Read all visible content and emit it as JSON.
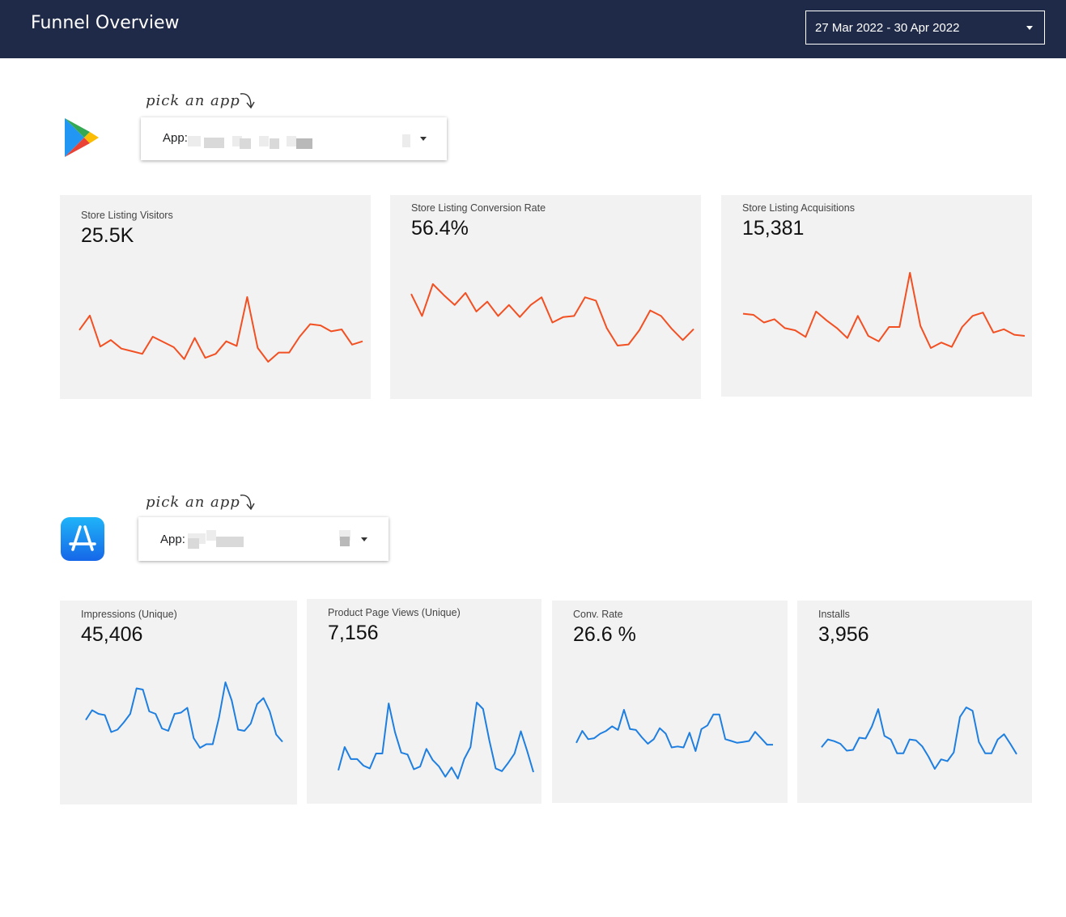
{
  "header": {
    "title": "Funnel Overview",
    "date_range": "27 Mar 2022 - 30 Apr 2022"
  },
  "colors": {
    "header_bg": "#1f2a48",
    "play_line": "#f25022",
    "appstore_line": "#1e7fe0",
    "card_bg": "#f2f2f2"
  },
  "google_play": {
    "icon": "google-play-icon",
    "hint": "pick an app",
    "selector": {
      "label": "App:"
    },
    "cards": [
      {
        "title": "Store Listing Visitors",
        "value": "25.5K",
        "series": [
          30,
          52,
          5,
          15,
          2,
          -2,
          -6,
          20,
          12,
          4,
          -14,
          18,
          -12,
          -6,
          13,
          6,
          80,
          3,
          -18,
          -4,
          -4,
          20,
          39,
          37,
          28,
          31,
          8,
          13
        ]
      },
      {
        "title": "Store Listing Conversion Rate",
        "value": "56.4%",
        "series": [
          63,
          43,
          72,
          62,
          53,
          64,
          47,
          56,
          43,
          53,
          42,
          53,
          60,
          37,
          42,
          43,
          60,
          57,
          32,
          16,
          17,
          30,
          48,
          43,
          31,
          21,
          31
        ]
      },
      {
        "title": "Store Listing Acquisitions",
        "value": "15,381",
        "series": [
          36,
          35,
          28,
          31,
          23,
          21,
          15,
          38,
          30,
          23,
          14,
          34,
          16,
          11,
          24,
          24,
          73,
          25,
          5,
          10,
          6,
          24,
          34,
          37,
          19,
          22,
          17,
          16
        ]
      }
    ]
  },
  "app_store": {
    "icon": "app-store-icon",
    "hint": "pick an app",
    "selector": {
      "label": "App:"
    },
    "cards": [
      {
        "title": "Impressions (Unique)",
        "value": "45,406",
        "series": [
          29,
          37,
          34,
          33,
          19,
          21,
          27,
          34,
          55,
          54,
          36,
          34,
          22,
          20,
          34,
          35,
          39,
          14,
          6,
          9,
          9,
          31,
          60,
          45,
          21,
          20,
          26,
          42,
          47,
          36,
          17,
          11
        ]
      },
      {
        "title": "Product Page Views (Unique)",
        "value": "7,156",
        "series": [
          5,
          30,
          17,
          17,
          10,
          7,
          23,
          23,
          77,
          46,
          24,
          22,
          6,
          9,
          28,
          16,
          9,
          -2,
          8,
          -4,
          17,
          30,
          78,
          71,
          37,
          7,
          4,
          13,
          23,
          47,
          26,
          3
        ]
      },
      {
        "title": "Conv. Rate",
        "value": "26.6 %",
        "series": [
          34,
          47,
          38,
          39,
          44,
          47,
          52,
          48,
          70,
          49,
          48,
          40,
          33,
          38,
          50,
          44,
          29,
          30,
          29,
          45,
          25,
          49,
          53,
          65,
          65,
          38,
          36,
          34,
          35,
          36,
          46,
          39,
          32,
          32
        ]
      },
      {
        "title": "Installs",
        "value": "3,956",
        "series": [
          17,
          26,
          24,
          21,
          13,
          14,
          28,
          27,
          41,
          61,
          30,
          26,
          10,
          10,
          26,
          25,
          18,
          6,
          -8,
          3,
          1,
          11,
          52,
          63,
          59,
          23,
          10,
          10,
          26,
          32,
          21,
          9
        ]
      }
    ]
  }
}
